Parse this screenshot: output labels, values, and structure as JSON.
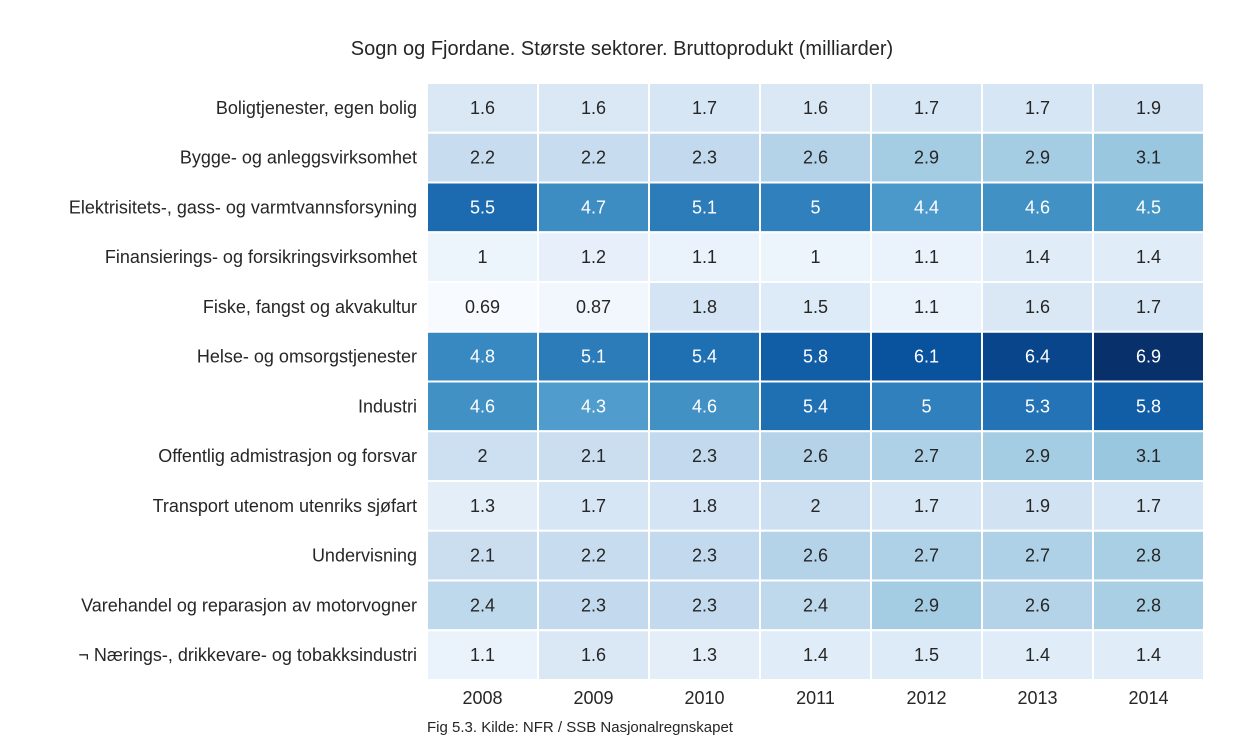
{
  "caption": "Fig 5.3. Kilde: NFR / SSB Nasjonalregnskapet",
  "chart_data": {
    "type": "heatmap",
    "title": "Sogn og Fjordane. Største sektorer. Bruttoprodukt (milliarder)",
    "xlabel": "",
    "ylabel": "",
    "colormap": "Blues",
    "grid": false,
    "x": [
      "2008",
      "2009",
      "2010",
      "2011",
      "2012",
      "2013",
      "2014"
    ],
    "y": [
      "Boligtjenester, egen bolig",
      "Bygge- og anleggsvirksomhet",
      "Elektrisitets-, gass- og varmtvannsforsyning",
      "Finansierings- og forsikringsvirksomhet",
      "Fiske, fangst og akvakultur",
      "Helse- og omsorgstjenester",
      "Industri",
      "Offentlig admistrasjon og forsvar",
      "Transport utenom utenriks sjøfart",
      "Undervisning",
      "Varehandel og reparasjon av motorvogner",
      "¬ Nærings-, drikkevare- og tobakksindustri"
    ],
    "values": [
      [
        "1.6",
        "1.6",
        "1.7",
        "1.6",
        "1.7",
        "1.7",
        "1.9"
      ],
      [
        "2.2",
        "2.2",
        "2.3",
        "2.6",
        "2.9",
        "2.9",
        "3.1"
      ],
      [
        "5.5",
        "4.7",
        "5.1",
        "5",
        "4.4",
        "4.6",
        "4.5"
      ],
      [
        "1",
        "1.2",
        "1.1",
        "1",
        "1.1",
        "1.4",
        "1.4"
      ],
      [
        "0.69",
        "0.87",
        "1.8",
        "1.5",
        "1.1",
        "1.6",
        "1.7"
      ],
      [
        "4.8",
        "5.1",
        "5.4",
        "5.8",
        "6.1",
        "6.4",
        "6.9"
      ],
      [
        "4.6",
        "4.3",
        "4.6",
        "5.4",
        "5",
        "5.3",
        "5.8"
      ],
      [
        "2",
        "2.1",
        "2.3",
        "2.6",
        "2.7",
        "2.9",
        "3.1"
      ],
      [
        "1.3",
        "1.7",
        "1.8",
        "2",
        "1.7",
        "1.9",
        "1.7"
      ],
      [
        "2.1",
        "2.2",
        "2.3",
        "2.6",
        "2.7",
        "2.7",
        "2.8"
      ],
      [
        "2.4",
        "2.3",
        "2.3",
        "2.4",
        "2.9",
        "2.6",
        "2.8"
      ],
      [
        "1.1",
        "1.6",
        "1.3",
        "1.4",
        "1.5",
        "1.4",
        "1.4"
      ]
    ]
  }
}
